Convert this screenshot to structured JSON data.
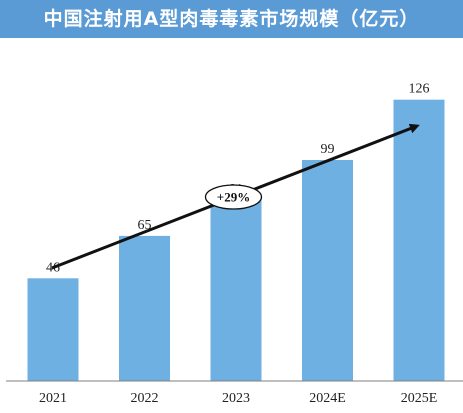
{
  "title": "中国注射用A型肉毒毒素市场规模（亿元）",
  "colors": {
    "title_bg": "#5b9bd5",
    "bar": "#6fb0e2",
    "arrow": "#111111",
    "axis": "#7f7f7f"
  },
  "chart_data": {
    "type": "bar",
    "title": "中国注射用A型肉毒毒素市场规模（亿元）",
    "categories": [
      "2021",
      "2022",
      "2023",
      "2024E",
      "2025E"
    ],
    "values": [
      46,
      65,
      81,
      99,
      126
    ],
    "xlabel": "",
    "ylabel": "",
    "ylim": [
      0,
      155
    ],
    "grid": false,
    "annotations": [
      {
        "type": "trend-arrow",
        "label": "+29%"
      }
    ]
  }
}
